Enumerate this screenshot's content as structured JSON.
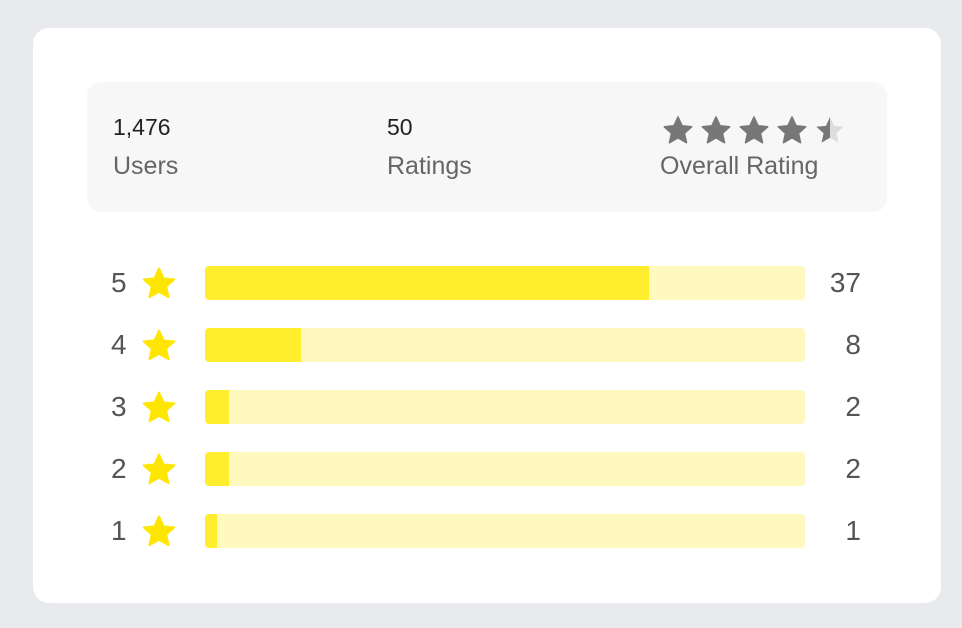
{
  "summary": {
    "users": {
      "value": "1,476",
      "label": "Users"
    },
    "ratings": {
      "value": "50",
      "label": "Ratings"
    },
    "overall": {
      "label": "Overall Rating",
      "score": 4.5,
      "max": 5,
      "star_color": "#777777",
      "empty_color": "#dddddd"
    }
  },
  "breakdown": {
    "star_icon": "star-icon",
    "star_color": "#ffe600",
    "fill_color": "#ffee2e",
    "track_color": "#fff9c0",
    "total": 50,
    "rows": [
      {
        "stars": "5",
        "count": "37",
        "fraction": 0.74
      },
      {
        "stars": "4",
        "count": "8",
        "fraction": 0.16
      },
      {
        "stars": "3",
        "count": "2",
        "fraction": 0.04
      },
      {
        "stars": "2",
        "count": "2",
        "fraction": 0.04
      },
      {
        "stars": "1",
        "count": "1",
        "fraction": 0.02
      }
    ]
  }
}
